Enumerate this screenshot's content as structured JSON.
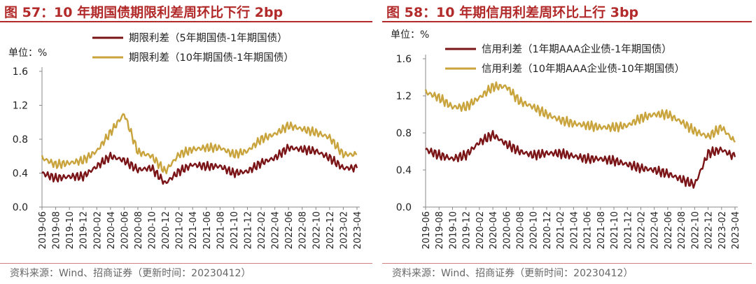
{
  "colors": {
    "title": "#b22a2a",
    "series_dark": "#7b1416",
    "series_gold": "#c9a33c",
    "axis": "#888888"
  },
  "panels": [
    {
      "title": "图 57：10 年期国债期限利差周环比下行 2bp",
      "source": "资料来源：Wind、招商证券（更新时间：20230412）"
    },
    {
      "title": "图 58：10 年期信用利差周环比上行 3bp",
      "source": "资料来源：Wind、招商证券（更新时间：20230412）"
    }
  ],
  "chart_data": [
    {
      "type": "line",
      "unit_label": "单位：%",
      "ylim": [
        0,
        1.6
      ],
      "yticks": [
        "0.0",
        "0.4",
        "0.8",
        "1.2",
        "1.6"
      ],
      "x": [
        "2019-06",
        "2019-08",
        "2019-10",
        "2019-12",
        "2020-02",
        "2020-04",
        "2020-06",
        "2020-08",
        "2020-10",
        "2020-12",
        "2021-02",
        "2021-04",
        "2021-06",
        "2021-08",
        "2021-10",
        "2021-12",
        "2022-02",
        "2022-04",
        "2022-06",
        "2022-08",
        "2022-10",
        "2022-12",
        "2023-02",
        "2023-04"
      ],
      "legend_position": "top",
      "series": [
        {
          "name": "期限利差（5年期国债-1年期国债）",
          "color": "#7b1416",
          "values": [
            0.4,
            0.34,
            0.36,
            0.36,
            0.48,
            0.6,
            0.55,
            0.44,
            0.46,
            0.28,
            0.42,
            0.5,
            0.48,
            0.48,
            0.4,
            0.42,
            0.52,
            0.58,
            0.7,
            0.68,
            0.66,
            0.58,
            0.46,
            0.46
          ]
        },
        {
          "name": "期限利差（10年期国债-1年期国债）",
          "color": "#c9a33c",
          "values": [
            0.58,
            0.5,
            0.52,
            0.55,
            0.66,
            0.88,
            1.1,
            0.65,
            0.6,
            0.42,
            0.62,
            0.68,
            0.7,
            0.7,
            0.62,
            0.66,
            0.8,
            0.86,
            0.96,
            0.92,
            0.88,
            0.82,
            0.62,
            0.62
          ]
        }
      ]
    },
    {
      "type": "line",
      "unit_label": "单位：%",
      "ylim": [
        0,
        1.6
      ],
      "yticks": [
        "0.0",
        "0.4",
        "0.8",
        "1.2",
        "1.6"
      ],
      "x": [
        "2019-06",
        "2019-08",
        "2019-10",
        "2019-12",
        "2020-02",
        "2020-04",
        "2020-06",
        "2020-08",
        "2020-10",
        "2020-12",
        "2021-02",
        "2021-04",
        "2021-06",
        "2021-08",
        "2021-10",
        "2021-12",
        "2022-02",
        "2022-04",
        "2022-06",
        "2022-08",
        "2022-10",
        "2022-12",
        "2023-02",
        "2023-04"
      ],
      "legend_position": "top",
      "series": [
        {
          "name": "信用利差（1年期AAA企业债-1年期国债）",
          "color": "#7b1416",
          "values": [
            0.62,
            0.56,
            0.52,
            0.56,
            0.7,
            0.78,
            0.68,
            0.6,
            0.56,
            0.58,
            0.58,
            0.55,
            0.52,
            0.52,
            0.5,
            0.46,
            0.42,
            0.4,
            0.36,
            0.3,
            0.24,
            0.58,
            0.62,
            0.54
          ]
        },
        {
          "name": "信用利差（10年期AAA企业债-10年期国债）",
          "color": "#c9a33c",
          "values": [
            1.24,
            1.18,
            1.08,
            1.08,
            1.18,
            1.3,
            1.3,
            1.14,
            1.08,
            1.0,
            0.94,
            0.9,
            0.88,
            0.86,
            0.86,
            0.88,
            0.96,
            1.0,
            1.0,
            0.92,
            0.82,
            0.76,
            0.86,
            0.7
          ]
        }
      ]
    }
  ]
}
